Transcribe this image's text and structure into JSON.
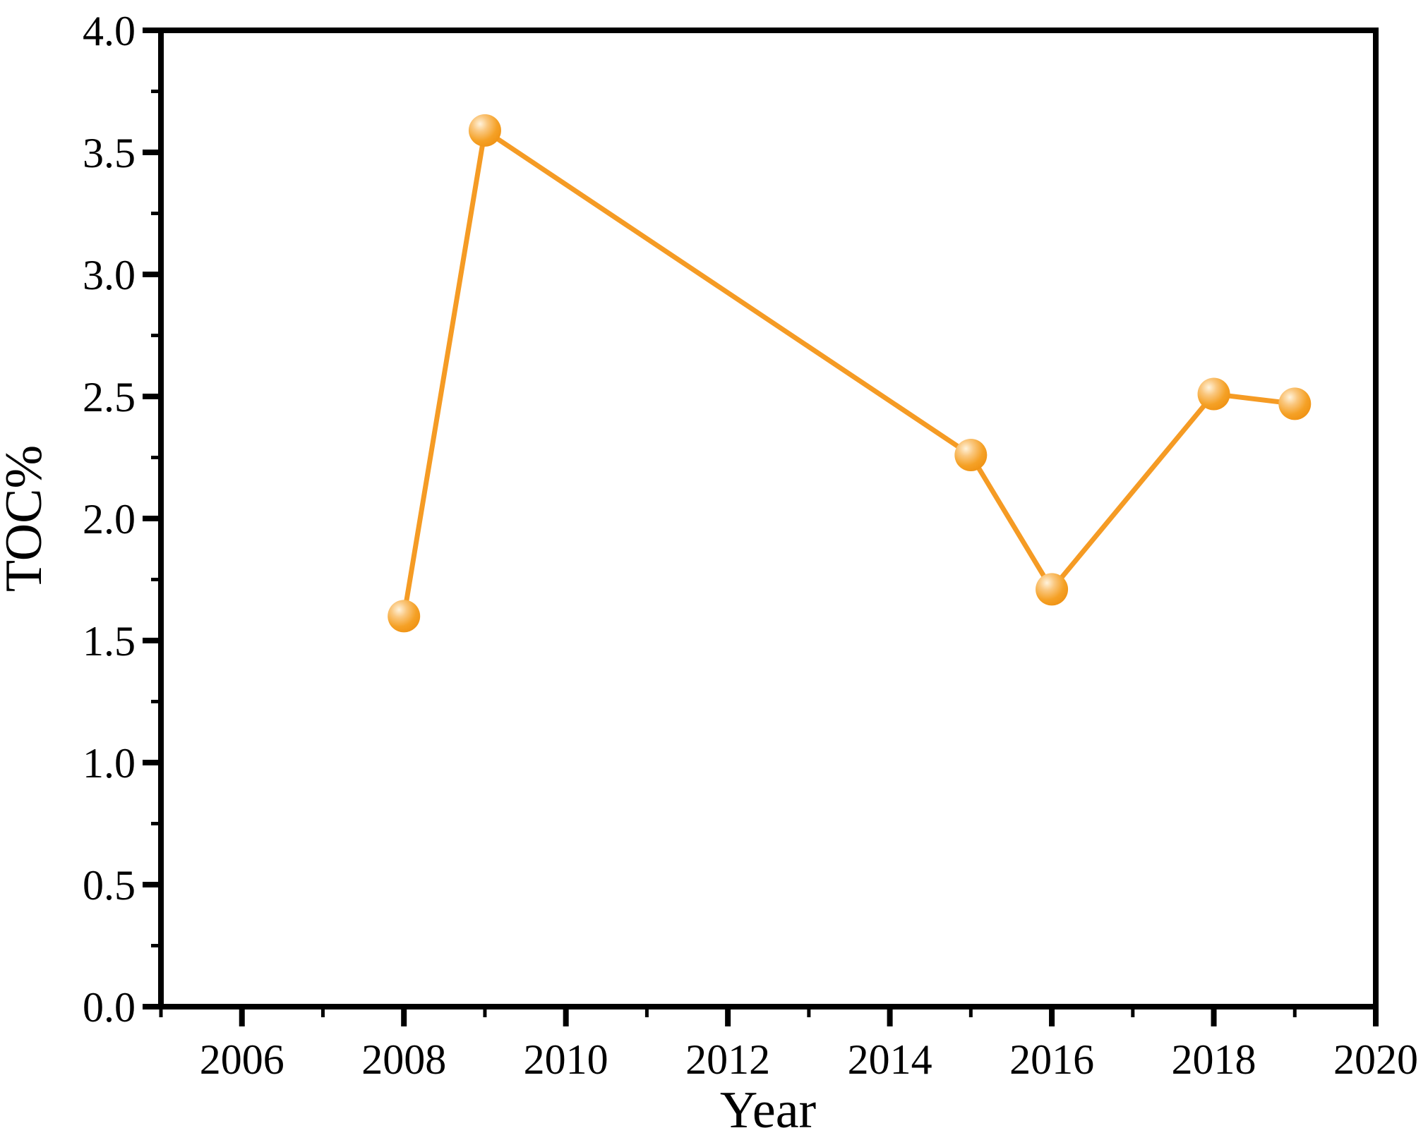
{
  "figure": {
    "background_color": "#FFFFFF",
    "axis_color": "#000000",
    "text_color": "#000000"
  },
  "chart_data": {
    "type": "line",
    "xlabel": "Year",
    "ylabel": "TOC%",
    "xlim": [
      2005,
      2020
    ],
    "ylim": [
      0.0,
      4.0
    ],
    "grid": false,
    "legend": "none",
    "line_color": "#F59B24",
    "marker_style": "sphere-gradient",
    "marker_highlight_color": "#FFF3DC",
    "marker_mid_color": "#F5A126",
    "marker_edge_color": "#ED8C0C",
    "points": [
      {
        "year": 2008,
        "toc": 1.6
      },
      {
        "year": 2009,
        "toc": 3.59
      },
      {
        "year": 2015,
        "toc": 2.26
      },
      {
        "year": 2016,
        "toc": 1.71
      },
      {
        "year": 2018,
        "toc": 2.51
      },
      {
        "year": 2019,
        "toc": 2.47
      }
    ],
    "x_major_ticks": [
      2006,
      2008,
      2010,
      2012,
      2014,
      2016,
      2018,
      2020
    ],
    "x_major_tick_labels": [
      "2006",
      "2008",
      "2010",
      "2012",
      "2014",
      "2016",
      "2018",
      "2020"
    ],
    "x_minor_ticks": [
      2005,
      2007,
      2009,
      2011,
      2013,
      2015,
      2017,
      2019
    ],
    "y_major_ticks": [
      0.0,
      0.5,
      1.0,
      1.5,
      2.0,
      2.5,
      3.0,
      3.5,
      4.0
    ],
    "y_major_tick_labels": [
      "0.0",
      "0.5",
      "1.0",
      "1.5",
      "2.0",
      "2.5",
      "3.0",
      "3.5",
      "4.0"
    ],
    "y_minor_ticks": [
      0.25,
      0.75,
      1.25,
      1.75,
      2.25,
      2.75,
      3.25,
      3.75
    ]
  }
}
